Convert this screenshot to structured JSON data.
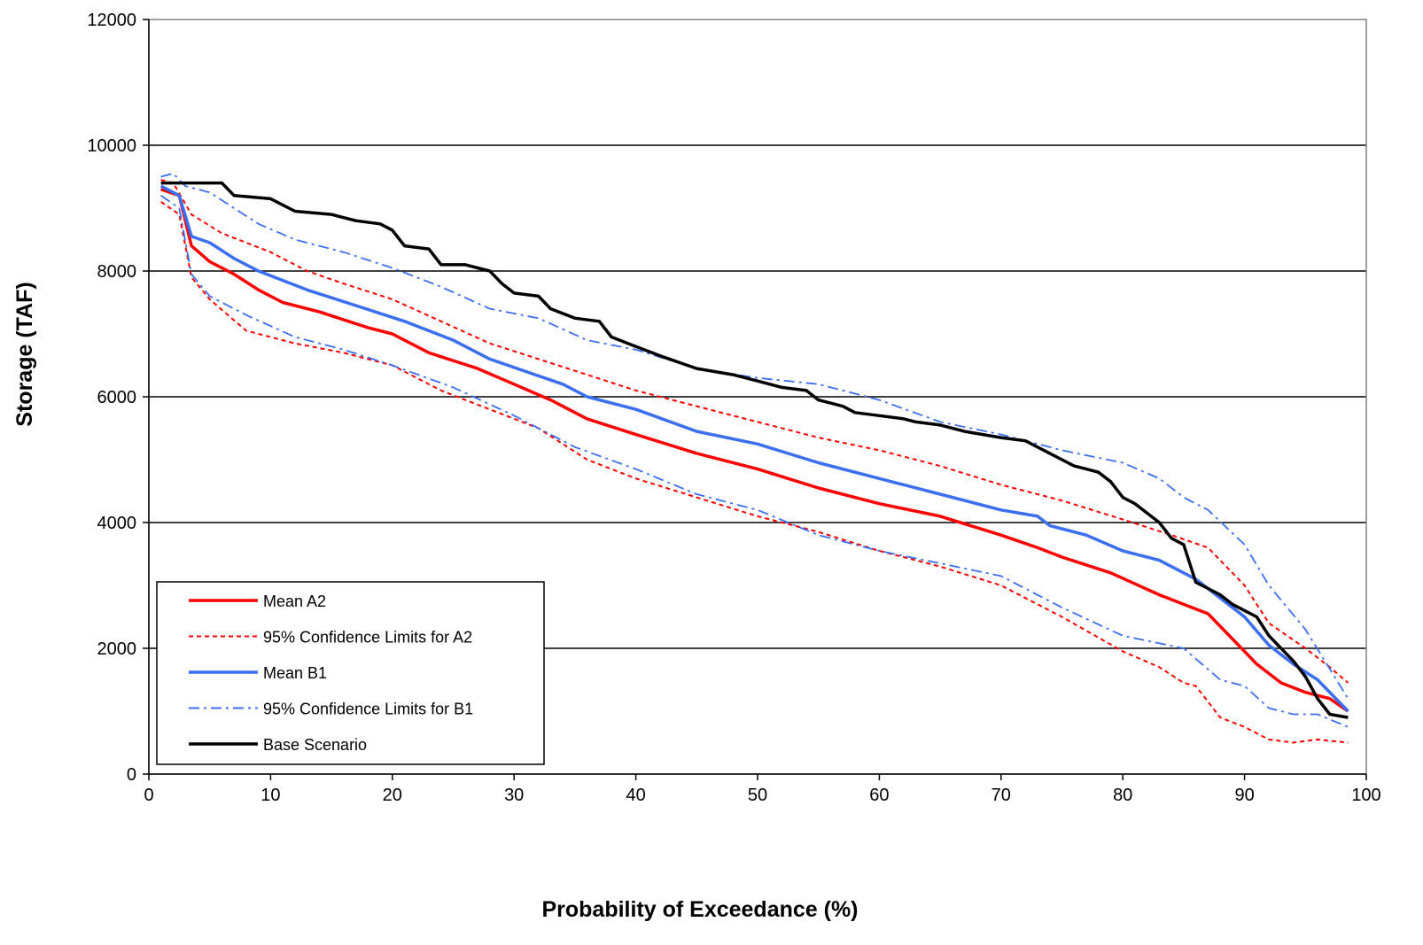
{
  "chart_data": {
    "type": "line",
    "title": "",
    "xlabel": "Probability of Exceedance (%)",
    "ylabel": "Storage (TAF)",
    "xlim": [
      0,
      100
    ],
    "ylim": [
      0,
      12000
    ],
    "xticks": [
      0,
      10,
      20,
      30,
      40,
      50,
      60,
      70,
      80,
      90,
      100
    ],
    "yticks": [
      0,
      2000,
      4000,
      6000,
      8000,
      10000,
      12000
    ],
    "grid": "horizontal",
    "legend_position": "bottom-left",
    "legend": [
      {
        "label": "Mean A2",
        "color": "#ff0000",
        "style": "solid"
      },
      {
        "label": "95% Confidence Limits for A2",
        "color": "#ff0000",
        "style": "dotted"
      },
      {
        "label": "Mean B1",
        "color": "#3b6ff0",
        "style": "solid"
      },
      {
        "label": "95% Confidence Limits for B1",
        "color": "#3b6ff0",
        "style": "dashdot"
      },
      {
        "label": "Base Scenario",
        "color": "#000000",
        "style": "solid"
      }
    ],
    "series": [
      {
        "name": "Mean A2",
        "color": "#ff0000",
        "style": "solid",
        "width": 3.5,
        "x": [
          1,
          2.5,
          3.5,
          5,
          7,
          9,
          11,
          14,
          18,
          20,
          23,
          27,
          30,
          33,
          36,
          40,
          45,
          50,
          55,
          60,
          65,
          70,
          73,
          75,
          79,
          83,
          87,
          90,
          91,
          93,
          95,
          97,
          98.5
        ],
        "y": [
          9300,
          9200,
          8400,
          8150,
          7950,
          7700,
          7500,
          7350,
          7100,
          7000,
          6700,
          6450,
          6200,
          5950,
          5650,
          5400,
          5100,
          4850,
          4550,
          4300,
          4100,
          3800,
          3600,
          3450,
          3200,
          2850,
          2550,
          1950,
          1750,
          1450,
          1300,
          1200,
          1000
        ]
      },
      {
        "name": "95% Confidence Limits for A2 (upper)",
        "color": "#ff0000",
        "style": "dotted",
        "width": 2,
        "x": [
          1,
          2,
          3.5,
          6,
          8,
          10,
          13,
          16,
          20,
          24,
          28,
          32,
          36,
          40,
          45,
          50,
          55,
          60,
          65,
          70,
          75,
          80,
          84,
          87,
          90,
          92,
          95,
          97,
          98.5
        ],
        "y": [
          9450,
          9400,
          8900,
          8600,
          8450,
          8300,
          8000,
          7800,
          7550,
          7200,
          6850,
          6600,
          6350,
          6100,
          5850,
          5600,
          5350,
          5150,
          4900,
          4600,
          4350,
          4050,
          3800,
          3600,
          3000,
          2400,
          2000,
          1700,
          1450
        ]
      },
      {
        "name": "95% Confidence Limits for A2 (lower)",
        "color": "#ff0000",
        "style": "dotted",
        "width": 2,
        "x": [
          1,
          2.5,
          3.5,
          5,
          8,
          12,
          16,
          20,
          24,
          28,
          32,
          36,
          40,
          45,
          50,
          55,
          60,
          65,
          70,
          75,
          80,
          83,
          85,
          86,
          88,
          90,
          92,
          94,
          96,
          98.5
        ],
        "y": [
          9100,
          8900,
          7900,
          7550,
          7050,
          6850,
          6700,
          6500,
          6100,
          5800,
          5500,
          5000,
          4700,
          4400,
          4100,
          3850,
          3550,
          3300,
          3000,
          2500,
          1950,
          1700,
          1450,
          1400,
          900,
          750,
          550,
          500,
          550,
          500
        ]
      },
      {
        "name": "Mean B1",
        "color": "#3b6ff0",
        "style": "solid",
        "width": 3.5,
        "x": [
          1,
          2.5,
          3.5,
          5,
          7,
          9,
          11,
          13,
          17,
          21,
          25,
          28,
          31,
          34,
          36,
          40,
          45,
          50,
          55,
          60,
          65,
          70,
          73,
          74,
          77,
          80,
          83,
          86,
          88,
          90,
          92,
          94,
          96,
          98.5
        ],
        "y": [
          9350,
          9200,
          8550,
          8450,
          8200,
          8000,
          7850,
          7700,
          7450,
          7200,
          6900,
          6600,
          6400,
          6200,
          6000,
          5800,
          5450,
          5250,
          4950,
          4700,
          4450,
          4200,
          4100,
          3950,
          3800,
          3550,
          3400,
          3100,
          2800,
          2500,
          2050,
          1750,
          1500,
          1000
        ]
      },
      {
        "name": "95% Confidence Limits for B1 (upper)",
        "color": "#3b6ff0",
        "style": "dashdot",
        "width": 1.8,
        "x": [
          1,
          2,
          3,
          5,
          7,
          9,
          12,
          16,
          20,
          24,
          28,
          32,
          36,
          40,
          45,
          50,
          55,
          60,
          65,
          70,
          75,
          80,
          83,
          85,
          87,
          90,
          92,
          95,
          98.5
        ],
        "y": [
          9500,
          9550,
          9350,
          9250,
          9000,
          8750,
          8500,
          8300,
          8050,
          7750,
          7400,
          7250,
          6900,
          6750,
          6450,
          6300,
          6200,
          5950,
          5600,
          5400,
          5150,
          4950,
          4700,
          4400,
          4200,
          3650,
          3000,
          2300,
          1200
        ]
      },
      {
        "name": "95% Confidence Limits for B1 (lower)",
        "color": "#3b6ff0",
        "style": "dashdot",
        "width": 1.8,
        "x": [
          1,
          2.5,
          3.5,
          5,
          8,
          12,
          16,
          20,
          25,
          30,
          35,
          40,
          45,
          50,
          55,
          60,
          65,
          70,
          75,
          80,
          85,
          88,
          90,
          92,
          94,
          96,
          98.5
        ],
        "y": [
          9200,
          9000,
          7950,
          7600,
          7300,
          6950,
          6750,
          6500,
          6150,
          5700,
          5200,
          4850,
          4450,
          4200,
          3800,
          3550,
          3350,
          3150,
          2650,
          2200,
          2000,
          1500,
          1400,
          1050,
          950,
          950,
          750
        ]
      },
      {
        "name": "Base Scenario",
        "color": "#000000",
        "style": "solid",
        "width": 3.5,
        "x": [
          1,
          3,
          6,
          7,
          10,
          12,
          15,
          17,
          19,
          20,
          21,
          23,
          24,
          26,
          27,
          28,
          29,
          30,
          32,
          33,
          35,
          37,
          38,
          40,
          42,
          45,
          48,
          50,
          52,
          54,
          55,
          57,
          58,
          60,
          62,
          63,
          65,
          67,
          70,
          72,
          73,
          74,
          75,
          76,
          77,
          78,
          79,
          80,
          81,
          82,
          83,
          84,
          85,
          86,
          87,
          88,
          89,
          90,
          91,
          92,
          93,
          94,
          95,
          96,
          97,
          98.5
        ],
        "y": [
          9400,
          9400,
          9400,
          9200,
          9150,
          8950,
          8900,
          8800,
          8750,
          8650,
          8400,
          8350,
          8100,
          8100,
          8050,
          8000,
          7800,
          7650,
          7600,
          7400,
          7250,
          7200,
          6950,
          6800,
          6650,
          6450,
          6350,
          6250,
          6150,
          6100,
          5950,
          5850,
          5750,
          5700,
          5650,
          5600,
          5550,
          5450,
          5350,
          5300,
          5200,
          5100,
          5000,
          4900,
          4850,
          4800,
          4650,
          4400,
          4300,
          4150,
          4000,
          3750,
          3650,
          3050,
          2950,
          2850,
          2700,
          2600,
          2500,
          2200,
          2000,
          1800,
          1550,
          1200,
          950,
          900
        ]
      }
    ]
  }
}
